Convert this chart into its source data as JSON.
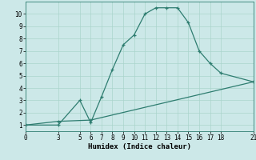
{
  "title": "",
  "xlabel": "Humidex (Indice chaleur)",
  "bg_color": "#cce8e8",
  "line_color": "#2e7d70",
  "line1_x": [
    0,
    3,
    5,
    6,
    7,
    8,
    9,
    10,
    11,
    12,
    13,
    14,
    15,
    16,
    17,
    18,
    21
  ],
  "line1_y": [
    1,
    1,
    3,
    1.2,
    3.3,
    5.5,
    7.5,
    8.3,
    10.0,
    10.5,
    10.5,
    10.5,
    9.3,
    7.0,
    6.0,
    5.2,
    4.5
  ],
  "line2_x": [
    0,
    3,
    6,
    21
  ],
  "line2_y": [
    1,
    1.3,
    1.4,
    4.5
  ],
  "xlim": [
    0,
    21
  ],
  "ylim": [
    0.5,
    11
  ],
  "xticks": [
    0,
    3,
    5,
    6,
    7,
    8,
    9,
    10,
    11,
    12,
    13,
    14,
    15,
    16,
    17,
    18,
    21
  ],
  "yticks": [
    1,
    2,
    3,
    4,
    5,
    6,
    7,
    8,
    9,
    10
  ],
  "grid_color": "#aad4cc",
  "tick_fontsize": 5.5,
  "xlabel_fontsize": 6.5,
  "line_width": 0.9,
  "marker_size": 3.5
}
